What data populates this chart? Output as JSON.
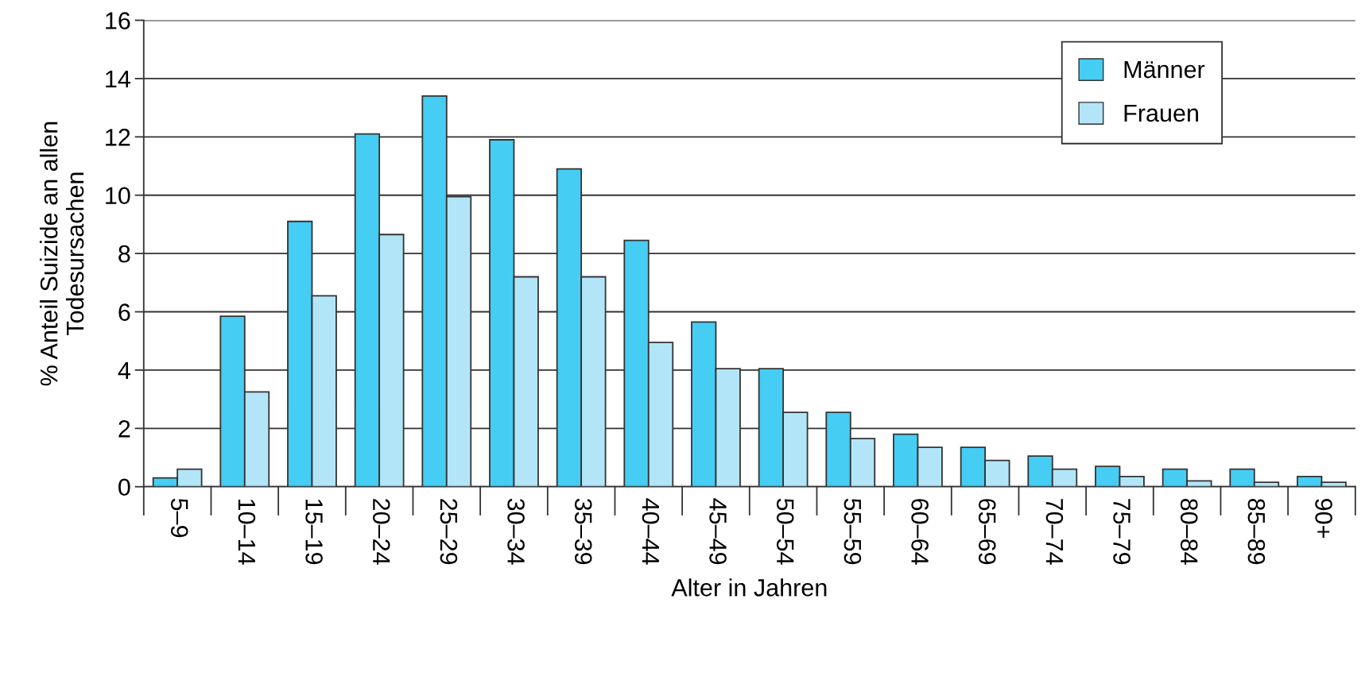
{
  "chart_data": {
    "type": "bar",
    "xlabel": "Alter in Jahren",
    "ylabel": "% Anteil Suizide an allen\nTodesursachen",
    "categories": [
      "5–9",
      "10–14",
      "15–19",
      "20–24",
      "25–29",
      "30–34",
      "35–39",
      "40–44",
      "45–49",
      "50–54",
      "55–59",
      "60–64",
      "65–69",
      "70–74",
      "75–79",
      "80–84",
      "85–89",
      "90+"
    ],
    "series": [
      {
        "name": "Männer",
        "color": "#45cdf3",
        "values": [
          0.3,
          5.85,
          9.1,
          12.1,
          13.4,
          11.9,
          10.9,
          8.45,
          5.65,
          4.05,
          2.55,
          1.8,
          1.35,
          1.05,
          0.7,
          0.6,
          0.6,
          0.35
        ]
      },
      {
        "name": "Frauen",
        "color": "#b3e5f8",
        "values": [
          0.6,
          3.25,
          6.55,
          8.65,
          9.95,
          7.2,
          7.2,
          4.95,
          4.05,
          2.55,
          1.65,
          1.35,
          0.9,
          0.6,
          0.35,
          0.2,
          0.15,
          0.15
        ]
      }
    ],
    "ylim": [
      0,
      16
    ],
    "yticks": [
      0,
      2,
      4,
      6,
      8,
      10,
      12,
      14,
      16
    ],
    "grid": "y",
    "legend": "top right"
  }
}
